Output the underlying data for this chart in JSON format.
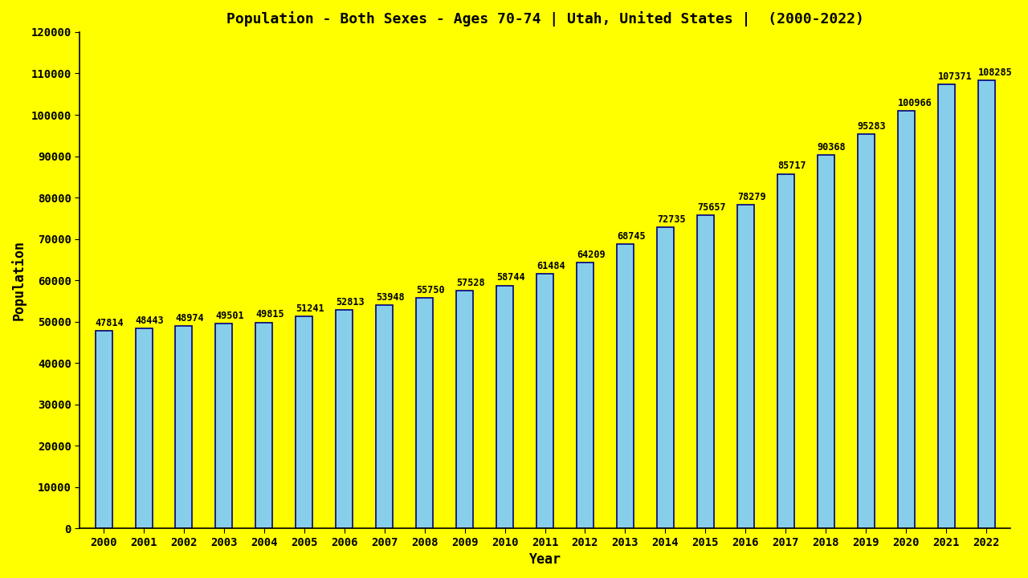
{
  "title": "Population - Both Sexes - Ages 70-74 | Utah, United States |  (2000-2022)",
  "xlabel": "Year",
  "ylabel": "Population",
  "background_color": "#ffff00",
  "bar_color": "#87ceeb",
  "bar_edge_color": "#000080",
  "years": [
    2000,
    2001,
    2002,
    2003,
    2004,
    2005,
    2006,
    2007,
    2008,
    2009,
    2010,
    2011,
    2012,
    2013,
    2014,
    2015,
    2016,
    2017,
    2018,
    2019,
    2020,
    2021,
    2022
  ],
  "values": [
    47814,
    48443,
    48974,
    49501,
    49815,
    51241,
    52813,
    53948,
    55750,
    57528,
    58744,
    61484,
    64209,
    68745,
    72735,
    75657,
    78279,
    85717,
    90368,
    95283,
    100966,
    107371,
    108285
  ],
  "ylim": [
    0,
    120000
  ],
  "yticks": [
    0,
    10000,
    20000,
    30000,
    40000,
    50000,
    60000,
    70000,
    80000,
    90000,
    100000,
    110000,
    120000
  ],
  "title_fontsize": 13,
  "label_fontsize": 12,
  "tick_fontsize": 10,
  "annotation_fontsize": 8.5,
  "bar_width": 0.42
}
